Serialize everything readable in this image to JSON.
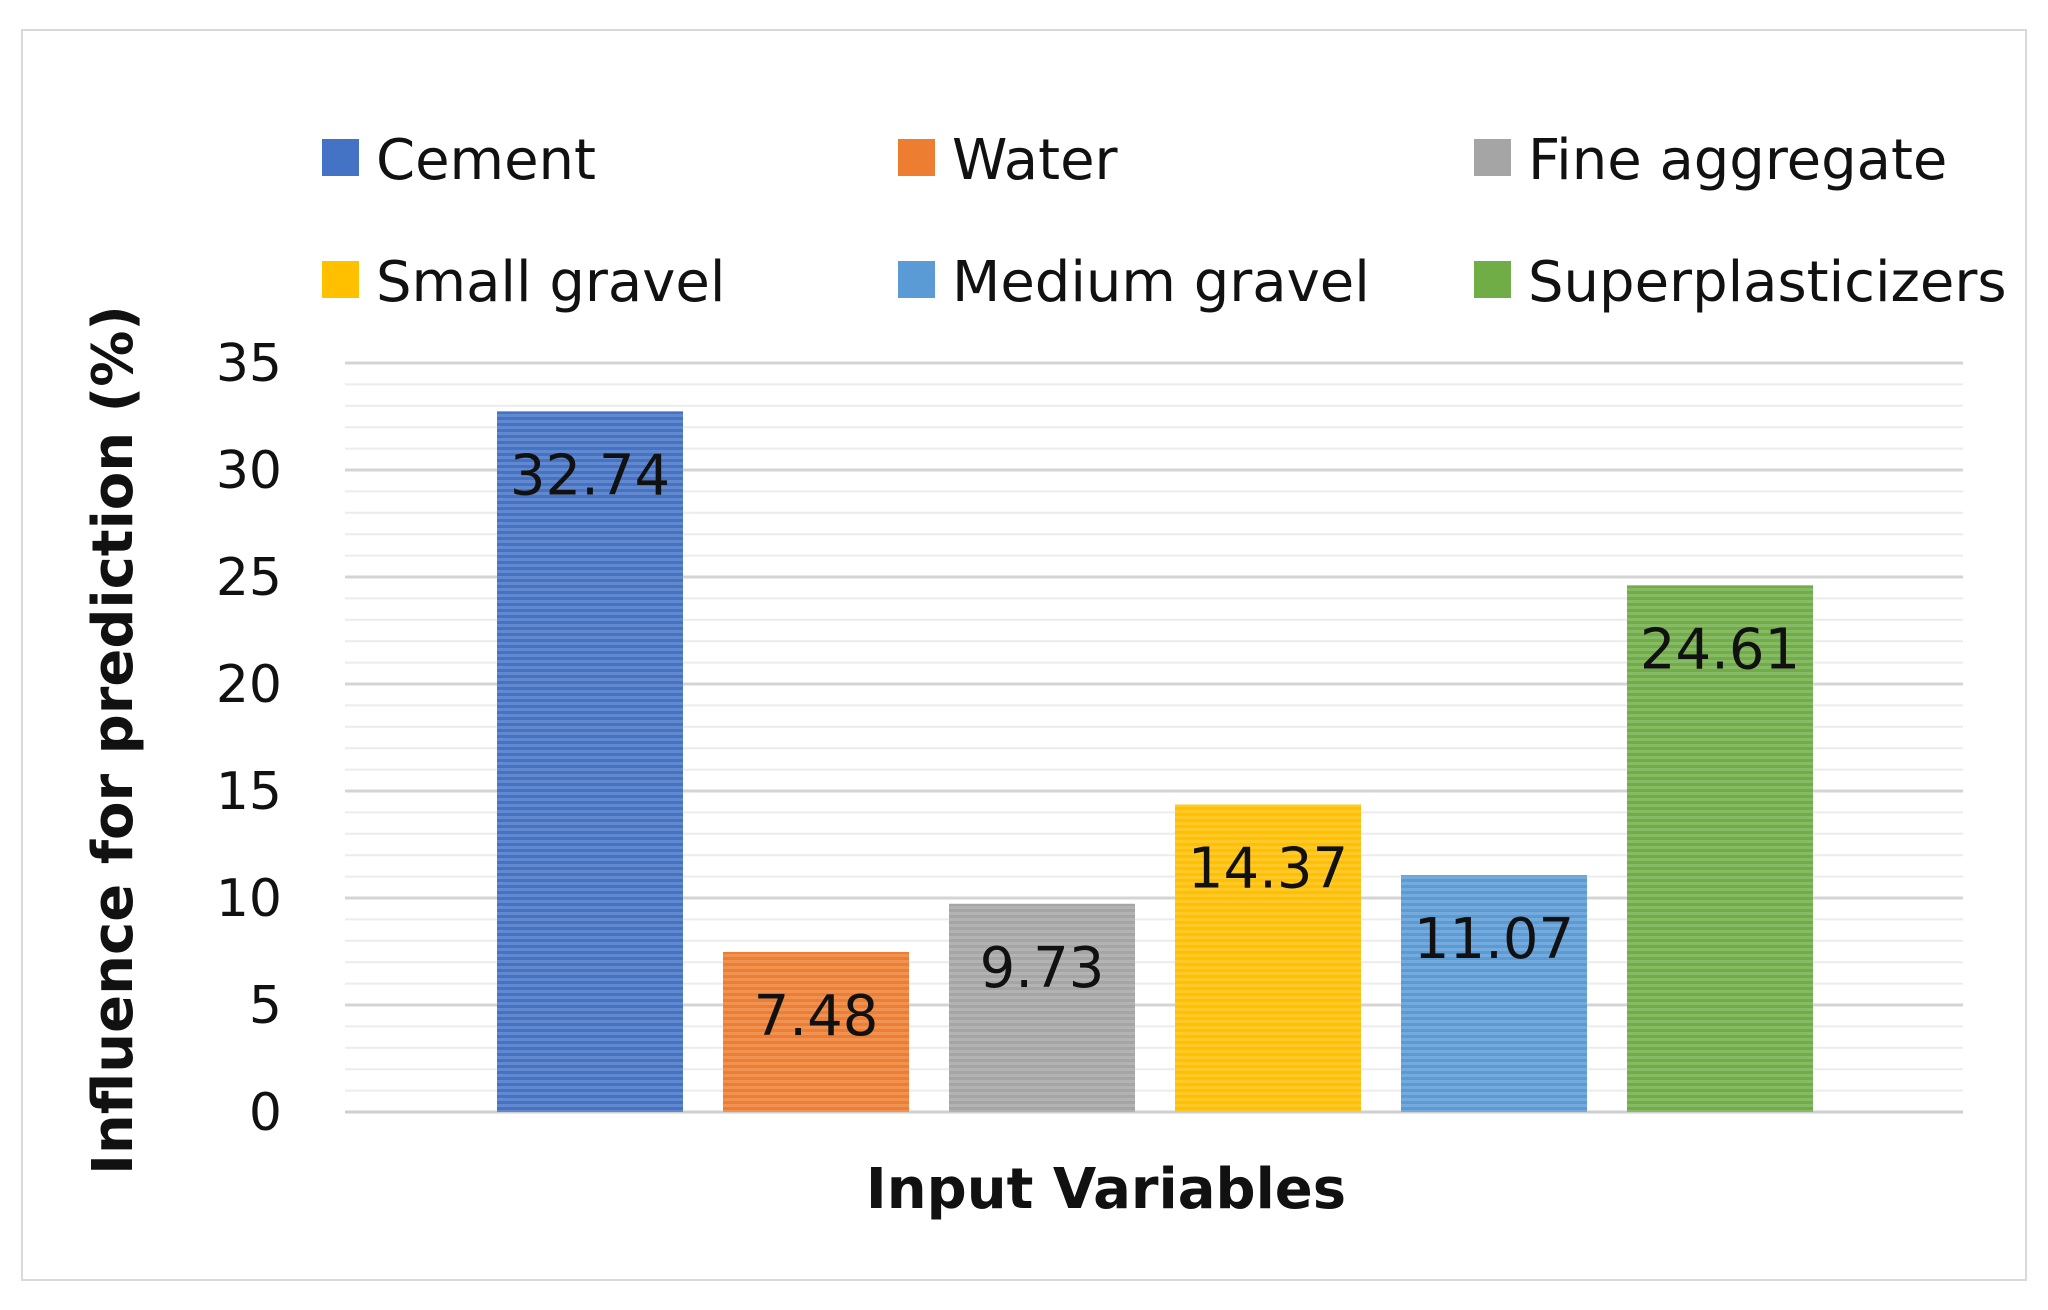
{
  "chart_data": {
    "type": "bar",
    "xlabel": "Input Variables",
    "ylabel": "Influence for prediction (%)",
    "ylim": [
      0,
      35
    ],
    "yticks": [
      0,
      5,
      10,
      15,
      20,
      25,
      30,
      35
    ],
    "grid": true,
    "legend_position": "top",
    "series": [
      {
        "name": "Cement",
        "value": 32.74,
        "label": "32.74",
        "color": "#4472c4"
      },
      {
        "name": "Water",
        "value": 7.48,
        "label": "7.48",
        "color": "#ed7d31"
      },
      {
        "name": "Fine aggregate",
        "value": 9.73,
        "label": "9.73",
        "color": "#a5a5a5"
      },
      {
        "name": "Small gravel",
        "value": 14.37,
        "label": "14.37",
        "color": "#ffc000"
      },
      {
        "name": "Medium  gravel",
        "value": 11.07,
        "label": "11.07",
        "color": "#5b9bd5"
      },
      {
        "name": "Superplasticizers",
        "value": 24.61,
        "label": "24.61",
        "color": "#70ad47"
      }
    ]
  }
}
